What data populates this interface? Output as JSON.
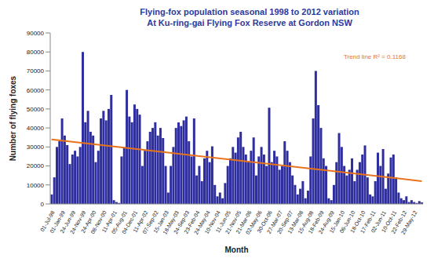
{
  "chart_data": {
    "type": "bar",
    "title": "Flying-fox population seasonal 1998 to 2012 variation At Ku-ring-gai Flying Fox Reserve at Gordon NSW",
    "x_label": "Month",
    "y_label": "Number of flying foxes",
    "categories": [
      "01-Jul-98",
      null,
      null,
      null,
      "01-Jan-99",
      null,
      null,
      null,
      "24-Jun-99",
      null,
      null,
      null,
      "24-Nov-99",
      null,
      null,
      null,
      "24-Apr-00",
      null,
      null,
      null,
      "08-Nov-00",
      null,
      null,
      null,
      "11-Apr-01",
      null,
      null,
      null,
      "05-Aug-01",
      null,
      null,
      null,
      "04-Dec-01",
      null,
      null,
      null,
      "11-Apr-02",
      null,
      null,
      null,
      "07-Sep-02",
      null,
      null,
      null,
      "15-Jan-03",
      null,
      null,
      null,
      "18-May-03",
      null,
      null,
      null,
      "24-Sep-03",
      null,
      null,
      null,
      "23-Feb-04",
      null,
      null,
      null,
      "24-May-04",
      null,
      null,
      null,
      "10-Nov-04",
      null,
      null,
      null,
      "11-Jun-05",
      null,
      null,
      null,
      "21-Nov-05",
      null,
      null,
      null,
      "21-Mar-06",
      null,
      null,
      null,
      "02-May-06",
      null,
      null,
      null,
      "30-Oct-06",
      null,
      null,
      null,
      "27-Mar-07",
      null,
      null,
      null,
      "20-Sep-07",
      null,
      null,
      null,
      "13-Mar-08",
      null,
      null,
      null,
      "15-Aug-08",
      null,
      null,
      null,
      "18-Feb-09",
      null,
      null,
      null,
      "24-Aug-09",
      null,
      null,
      null,
      "15-Jan-10",
      null,
      null,
      null,
      "06-Jun-10",
      null,
      null,
      null,
      "18-Oct-10",
      null,
      null,
      null,
      "17-Feb-11",
      null,
      null,
      null,
      "02-Jun-11",
      null,
      null,
      null,
      "10-Oct-11",
      null,
      null,
      null,
      "22-Feb-12",
      null,
      null,
      null,
      "29-May-12",
      null,
      null,
      null
    ],
    "values": [
      5000,
      14000,
      30000,
      33000,
      45000,
      36000,
      31000,
      21000,
      26000,
      28000,
      25000,
      30000,
      80000,
      43000,
      49000,
      38000,
      36000,
      22000,
      28000,
      45000,
      49000,
      44000,
      50000,
      57400,
      2000,
      1000,
      500,
      25000,
      29920,
      60000,
      46000,
      43000,
      52350,
      50000,
      47000,
      20000,
      28000,
      33000,
      38000,
      40000,
      43000,
      36000,
      40000,
      34700,
      20000,
      6000,
      20000,
      30000,
      40000,
      42910,
      41000,
      44000,
      46000,
      33000,
      25000,
      45000,
      15000,
      20000,
      12000,
      24000,
      28000,
      22000,
      30330,
      10000,
      4000,
      6000,
      3000,
      11000,
      20000,
      24000,
      30000,
      27000,
      35000,
      38000,
      30000,
      26000,
      22000,
      28000,
      35000,
      15000,
      25000,
      30000,
      26000,
      20000,
      50650,
      22000,
      28000,
      25000,
      18000,
      20000,
      33000,
      28000,
      22000,
      15000,
      10000,
      5000,
      8000,
      12000,
      3000,
      7000,
      25000,
      45000,
      70000,
      52000,
      40000,
      24000,
      20000,
      3000,
      2000,
      10000,
      22000,
      37310,
      30000,
      20000,
      15000,
      18000,
      24000,
      12000,
      18000,
      22000,
      26000,
      30810,
      14000,
      5000,
      4000,
      12000,
      27000,
      20000,
      28900,
      8000,
      16000,
      24460,
      26000,
      14000,
      6000,
      3000,
      2000,
      4000,
      1000,
      2000,
      1000,
      500,
      1500,
      800
    ],
    "color": "#2e2e9e",
    "ylim": [
      0,
      90000
    ],
    "yticks": [
      0,
      10000,
      20000,
      30000,
      40000,
      50000,
      60000,
      70000,
      80000,
      90000
    ],
    "grid": false,
    "trend_line": {
      "label": "Trend line R² = 0.1168",
      "values": [
        34000,
        12000
      ],
      "color": "#e8731c"
    }
  }
}
